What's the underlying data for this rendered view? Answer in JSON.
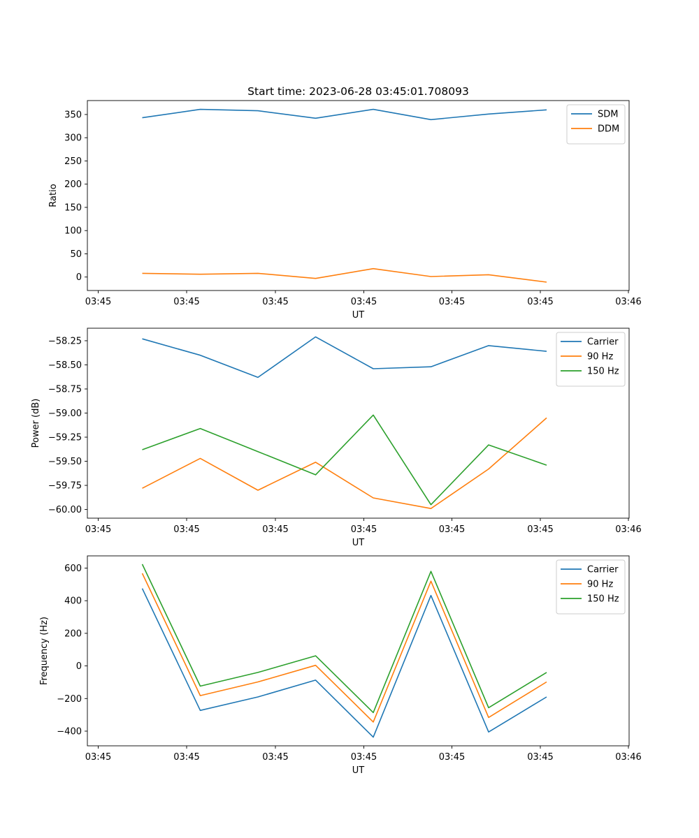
{
  "figure": {
    "title": "Start time: 2023-06-28 03:45:01.708093"
  },
  "chart_data": [
    {
      "type": "line",
      "title": "Start time: 2023-06-28 03:45:01.708093",
      "xlabel": "UT",
      "ylabel": "Ratio",
      "x_tick_labels": [
        "03:45",
        "03:45",
        "03:45",
        "03:45",
        "03:45",
        "03:45",
        "03:46"
      ],
      "y_ticks": [
        0,
        50,
        100,
        150,
        200,
        250,
        300,
        350
      ],
      "ylim": [
        -29,
        380
      ],
      "grid": false,
      "legend": "upper right",
      "series": [
        {
          "name": "SDM",
          "color": "#1f77b4",
          "values": [
            343,
            361,
            358,
            342,
            361,
            339,
            351,
            360
          ]
        },
        {
          "name": "DDM",
          "color": "#ff7f0e",
          "values": [
            8,
            6,
            8,
            -3,
            18,
            1,
            5,
            -11
          ]
        }
      ]
    },
    {
      "type": "line",
      "title": "",
      "xlabel": "UT",
      "ylabel": "Power (dB)",
      "x_tick_labels": [
        "03:45",
        "03:45",
        "03:45",
        "03:45",
        "03:45",
        "03:45",
        "03:46"
      ],
      "y_ticks": [
        -60.0,
        -59.75,
        -59.5,
        -59.25,
        -59.0,
        -58.75,
        -58.5,
        -58.25
      ],
      "y_tick_labels": [
        "−60.00",
        "−59.75",
        "−59.50",
        "−59.25",
        "−59.00",
        "−58.75",
        "−58.50",
        "−58.25"
      ],
      "ylim": [
        -60.09,
        -58.12
      ],
      "grid": false,
      "legend": "upper right",
      "series": [
        {
          "name": "Carrier",
          "color": "#1f77b4",
          "values": [
            -58.23,
            -58.4,
            -58.63,
            -58.21,
            -58.54,
            -58.52,
            -58.3,
            -58.36
          ]
        },
        {
          "name": "90 Hz",
          "color": "#ff7f0e",
          "values": [
            -59.78,
            -59.47,
            -59.8,
            -59.51,
            -59.88,
            -59.99,
            -59.58,
            -59.05
          ]
        },
        {
          "name": "150 Hz",
          "color": "#2ca02c",
          "values": [
            -59.38,
            -59.16,
            -59.4,
            -59.64,
            -59.02,
            -59.95,
            -59.33,
            -59.54
          ]
        }
      ]
    },
    {
      "type": "line",
      "title": "",
      "xlabel": "UT",
      "ylabel": "Frequency (Hz)",
      "x_tick_labels": [
        "03:45",
        "03:45",
        "03:45",
        "03:45",
        "03:45",
        "03:45",
        "03:46"
      ],
      "y_ticks": [
        -400,
        -200,
        0,
        200,
        400,
        600
      ],
      "y_tick_labels": [
        "−400",
        "−200",
        "0",
        "200",
        "400",
        "600"
      ],
      "ylim": [
        -490,
        675
      ],
      "grid": false,
      "legend": "upper right",
      "series": [
        {
          "name": "Carrier",
          "color": "#1f77b4",
          "values": [
            475,
            -273,
            -190,
            -87,
            -437,
            432,
            -405,
            -190
          ]
        },
        {
          "name": "90 Hz",
          "color": "#ff7f0e",
          "values": [
            568,
            -182,
            -98,
            4,
            -344,
            520,
            -316,
            -98
          ]
        },
        {
          "name": "150 Hz",
          "color": "#2ca02c",
          "values": [
            624,
            -124,
            -40,
            62,
            -286,
            580,
            -256,
            -40
          ]
        }
      ]
    }
  ]
}
